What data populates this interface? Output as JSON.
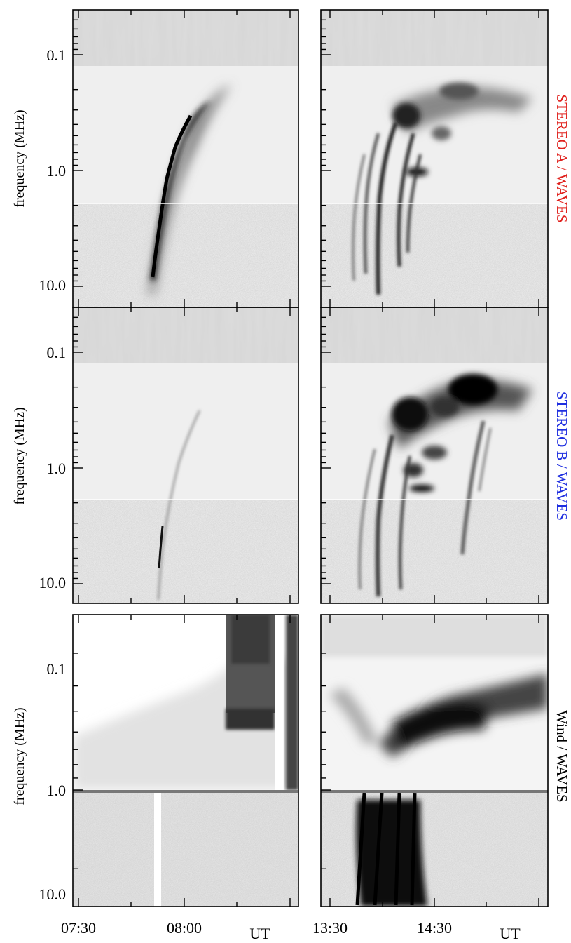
{
  "figure": {
    "ylabel": "frequency (MHz)",
    "yticks": [
      "0.1",
      "1.0",
      "10.0"
    ],
    "xticks_left": [
      "07:30",
      "08:00"
    ],
    "xticks_right": [
      "13:30",
      "14:30"
    ],
    "unit_left": "UT",
    "unit_right": "UT",
    "rows": [
      {
        "instrument": "STEREO A / WAVES",
        "color": "#e0201c"
      },
      {
        "instrument": "STEREO B / WAVES",
        "color": "#1e2ee0"
      },
      {
        "instrument": "Wind / WAVES",
        "color": "#000000"
      }
    ]
  },
  "chart_data": {
    "type": "heatmap",
    "description_free": true,
    "yscale": "log",
    "ylim_mhz": [
      15.0,
      0.04
    ],
    "xlim_left": [
      "07:30",
      "08:10"
    ],
    "xlim_right": [
      "13:30",
      "15:00"
    ],
    "panels": [
      {
        "row": "STEREO A / WAVES",
        "column": "left"
      },
      {
        "row": "STEREO A / WAVES",
        "column": "right"
      },
      {
        "row": "STEREO B / WAVES",
        "column": "left"
      },
      {
        "row": "STEREO B / WAVES",
        "column": "right"
      },
      {
        "row": "Wind / WAVES",
        "column": "left"
      },
      {
        "row": "Wind / WAVES",
        "column": "right"
      }
    ]
  }
}
